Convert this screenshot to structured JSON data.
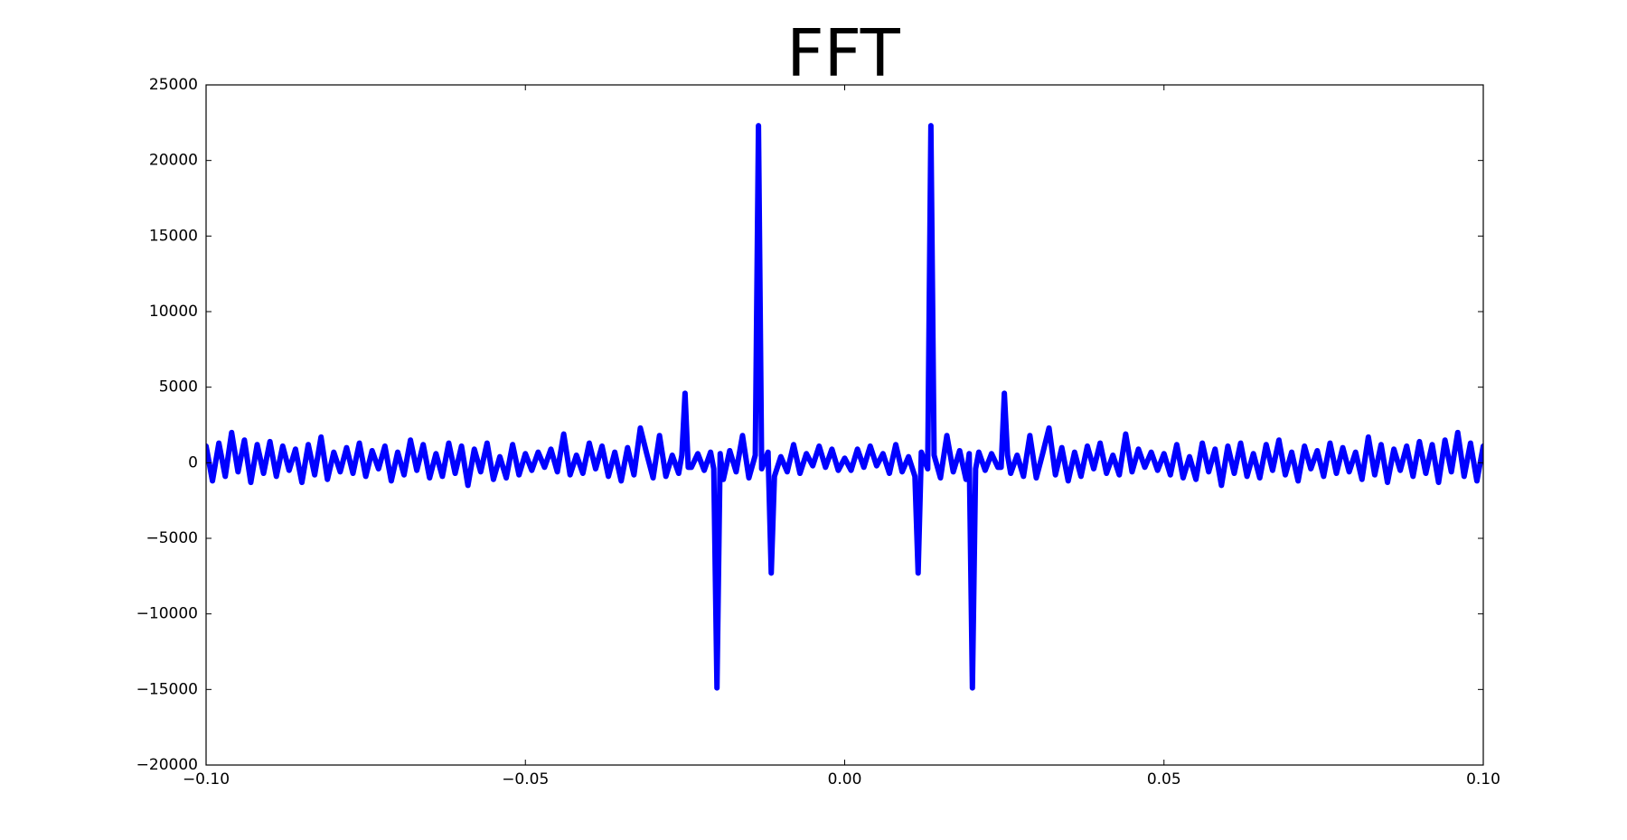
{
  "chart_data": {
    "type": "line",
    "title": "FFT",
    "color": "#0000ff",
    "x": [
      -0.1,
      -0.099,
      -0.098,
      -0.097,
      -0.096,
      -0.095,
      -0.094,
      -0.093,
      -0.092,
      -0.091,
      -0.09,
      -0.089,
      -0.088,
      -0.087,
      -0.086,
      -0.085,
      -0.084,
      -0.083,
      -0.082,
      -0.081,
      -0.08,
      -0.079,
      -0.078,
      -0.077,
      -0.076,
      -0.075,
      -0.074,
      -0.073,
      -0.072,
      -0.071,
      -0.07,
      -0.069,
      -0.068,
      -0.067,
      -0.066,
      -0.065,
      -0.064,
      -0.063,
      -0.062,
      -0.061,
      -0.06,
      -0.059,
      -0.058,
      -0.057,
      -0.056,
      -0.055,
      -0.054,
      -0.053,
      -0.052,
      -0.051,
      -0.05,
      -0.049,
      -0.048,
      -0.047,
      -0.046,
      -0.045,
      -0.044,
      -0.043,
      -0.042,
      -0.041,
      -0.04,
      -0.039,
      -0.038,
      -0.037,
      -0.036,
      -0.035,
      -0.034,
      -0.033,
      -0.032,
      -0.031,
      -0.03,
      -0.029,
      -0.028,
      -0.027,
      -0.026,
      -0.0255,
      -0.025,
      -0.0245,
      -0.024,
      -0.023,
      -0.022,
      -0.021,
      -0.0205,
      -0.02,
      -0.0195,
      -0.019,
      -0.018,
      -0.017,
      -0.016,
      -0.015,
      -0.014,
      -0.0135,
      -0.013,
      -0.012,
      -0.0115,
      -0.011,
      -0.01,
      -0.009,
      -0.008,
      -0.007,
      -0.006,
      -0.005,
      -0.004,
      -0.003,
      -0.002,
      -0.001,
      0,
      0.001,
      0.002,
      0.003,
      0.004,
      0.005,
      0.006,
      0.007,
      0.008,
      0.009,
      0.01,
      0.011,
      0.0115,
      0.012,
      0.013,
      0.0135,
      0.014,
      0.015,
      0.016,
      0.017,
      0.018,
      0.019,
      0.0195,
      0.02,
      0.0205,
      0.021,
      0.022,
      0.023,
      0.024,
      0.0245,
      0.025,
      0.0255,
      0.026,
      0.027,
      0.028,
      0.029,
      0.03,
      0.031,
      0.032,
      0.033,
      0.034,
      0.035,
      0.036,
      0.037,
      0.038,
      0.039,
      0.04,
      0.041,
      0.042,
      0.043,
      0.044,
      0.045,
      0.046,
      0.047,
      0.048,
      0.049,
      0.05,
      0.051,
      0.052,
      0.053,
      0.054,
      0.055,
      0.056,
      0.057,
      0.058,
      0.059,
      0.06,
      0.061,
      0.062,
      0.063,
      0.064,
      0.065,
      0.066,
      0.067,
      0.068,
      0.069,
      0.07,
      0.071,
      0.072,
      0.073,
      0.074,
      0.075,
      0.076,
      0.077,
      0.078,
      0.079,
      0.08,
      0.081,
      0.082,
      0.083,
      0.084,
      0.085,
      0.086,
      0.087,
      0.088,
      0.089,
      0.09,
      0.091,
      0.092,
      0.093,
      0.094,
      0.095,
      0.096,
      0.097,
      0.098,
      0.099,
      0.1
    ],
    "values": [
      1100,
      -1200,
      1300,
      -900,
      2000,
      -600,
      1500,
      -1300,
      1200,
      -700,
      1400,
      -900,
      1100,
      -500,
      900,
      -1300,
      1200,
      -800,
      1700,
      -1100,
      700,
      -600,
      1000,
      -700,
      1300,
      -900,
      800,
      -400,
      1100,
      -1200,
      700,
      -800,
      1500,
      -500,
      1200,
      -1000,
      600,
      -900,
      1300,
      -700,
      1100,
      -1500,
      900,
      -600,
      1300,
      -1100,
      400,
      -1000,
      1200,
      -800,
      600,
      -500,
      700,
      -300,
      900,
      -600,
      1900,
      -800,
      500,
      -700,
      1300,
      -400,
      1100,
      -900,
      700,
      -1200,
      1000,
      -800,
      2300,
      600,
      -1000,
      1800,
      -900,
      500,
      -700,
      500,
      4600,
      -300,
      -300,
      600,
      -500,
      700,
      -400,
      -14900,
      600,
      -1100,
      800,
      -600,
      1800,
      -1000,
      500,
      22300,
      -400,
      700,
      -7300,
      -900,
      400,
      -600,
      1200,
      -700,
      600,
      -200,
      1100,
      -300,
      900,
      -500,
      300,
      -500,
      900,
      -300,
      1100,
      -200,
      600,
      -700,
      1200,
      -600,
      400,
      -900,
      -7300,
      700,
      -400,
      22300,
      500,
      -1000,
      1800,
      -600,
      800,
      -1100,
      600,
      -14900,
      -400,
      700,
      -500,
      600,
      -300,
      -300,
      4600,
      500,
      -700,
      500,
      -900,
      1800,
      -1000,
      600,
      2300,
      -800,
      1000,
      -1200,
      700,
      -900,
      1100,
      -400,
      1300,
      -700,
      500,
      -800,
      1900,
      -600,
      900,
      -300,
      700,
      -500,
      600,
      -800,
      1200,
      -1000,
      400,
      -1100,
      1300,
      -600,
      900,
      -1500,
      1100,
      -700,
      1300,
      -900,
      600,
      -1000,
      1200,
      -500,
      1500,
      -800,
      700,
      -1200,
      1100,
      -400,
      800,
      -900,
      1300,
      -700,
      1000,
      -600,
      700,
      -1100,
      1700,
      -800,
      1200,
      -1300,
      900,
      -500,
      1100,
      -900,
      1400,
      -700,
      1200,
      -1300,
      1500,
      -600,
      2000,
      -900,
      1300,
      -1200,
      1100
    ],
    "xlim": [
      -0.1,
      0.1
    ],
    "xticks": [
      {
        "value": -0.1,
        "label": "−0.10"
      },
      {
        "value": -0.05,
        "label": "−0.05"
      },
      {
        "value": 0,
        "label": "0.00"
      },
      {
        "value": 0.05,
        "label": "0.05"
      },
      {
        "value": 0.1,
        "label": "0.10"
      }
    ],
    "ylim": [
      -20000,
      25000
    ],
    "yticks": [
      {
        "value": -20000,
        "label": "−20000"
      },
      {
        "value": -15000,
        "label": "−15000"
      },
      {
        "value": -10000,
        "label": "−10000"
      },
      {
        "value": -5000,
        "label": "−5000"
      },
      0,
      5000,
      10000,
      15000,
      20000,
      25000
    ],
    "grid": false
  }
}
